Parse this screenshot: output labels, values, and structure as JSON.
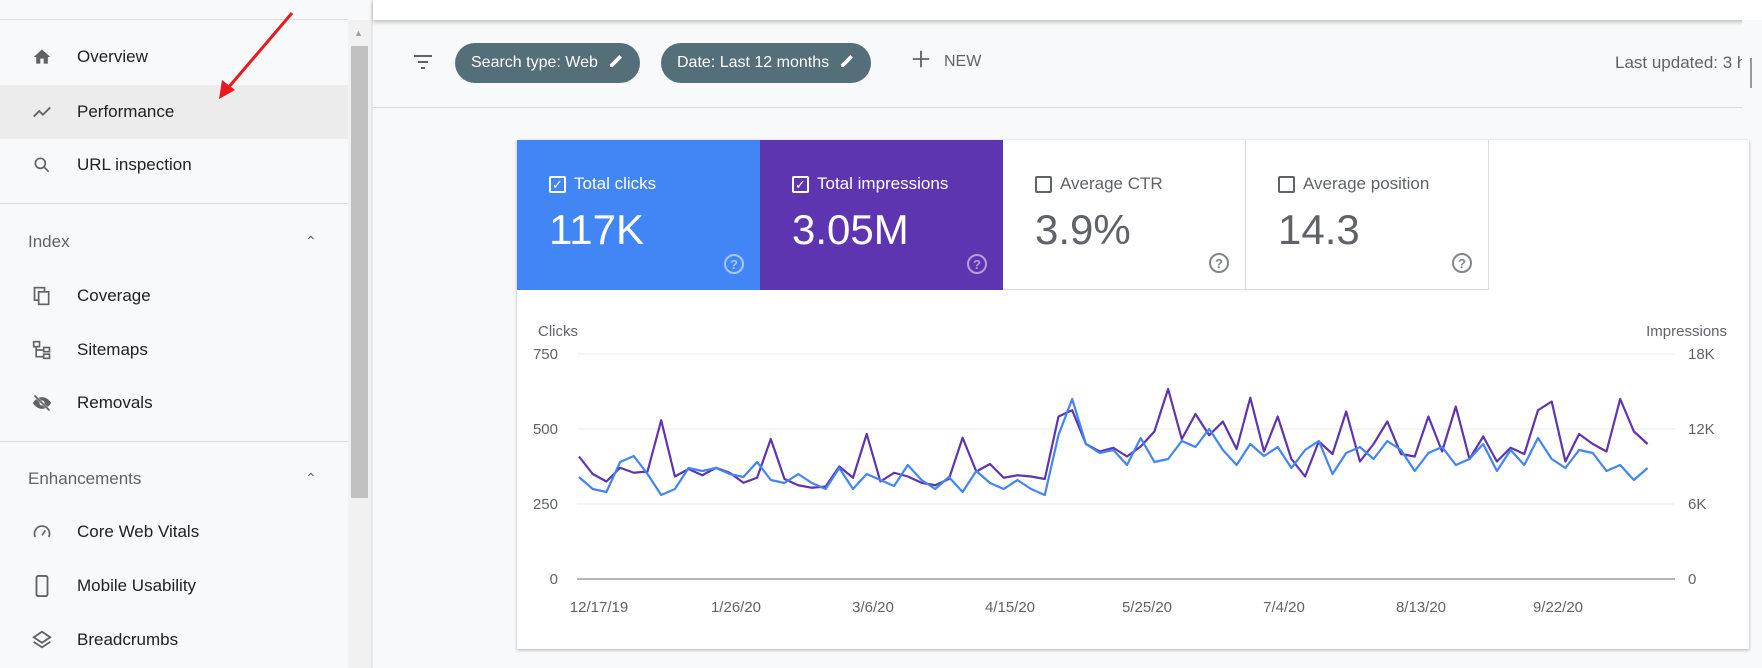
{
  "sidebar": {
    "items": [
      {
        "label": "Overview",
        "icon": "home-icon"
      },
      {
        "label": "Performance",
        "icon": "trending-up-icon",
        "active": true
      },
      {
        "label": "URL inspection",
        "icon": "search-icon"
      }
    ],
    "index": {
      "title": "Index",
      "items": [
        {
          "label": "Coverage",
          "icon": "copy-icon"
        },
        {
          "label": "Sitemaps",
          "icon": "sitemap-icon"
        },
        {
          "label": "Removals",
          "icon": "eye-off-icon"
        }
      ]
    },
    "enhancements": {
      "title": "Enhancements",
      "items": [
        {
          "label": "Core Web Vitals",
          "icon": "gauge-icon"
        },
        {
          "label": "Mobile Usability",
          "icon": "phone-icon"
        },
        {
          "label": "Breadcrumbs",
          "icon": "layers-icon"
        }
      ]
    }
  },
  "toolbar": {
    "chip1": "Search type: Web",
    "chip2": "Date: Last 12 months",
    "new_label": "NEW",
    "last_updated": "Last updated: 3 h"
  },
  "metrics": [
    {
      "label": "Total clicks",
      "value": "117K",
      "checked": true,
      "color": "#4285f4"
    },
    {
      "label": "Total impressions",
      "value": "3.05M",
      "checked": true,
      "color": "#5e35b1"
    },
    {
      "label": "Average CTR",
      "value": "3.9%",
      "checked": false
    },
    {
      "label": "Average position",
      "value": "14.3",
      "checked": false
    }
  ],
  "chart_data": {
    "type": "line",
    "ylabel_left": "Clicks",
    "ylabel_right": "Impressions",
    "yticks_left": [
      "0",
      "250",
      "500",
      "750"
    ],
    "ylim_left": [
      0,
      750
    ],
    "yticks_right": [
      "0",
      "6K",
      "12K",
      "18K"
    ],
    "ylim_right": [
      0,
      18000
    ],
    "xticks": [
      "12/17/19",
      "1/26/20",
      "3/6/20",
      "4/15/20",
      "5/25/20",
      "7/4/20",
      "8/13/20",
      "9/22/20"
    ],
    "x_step_days": 4,
    "series": [
      {
        "name": "Clicks",
        "axis": "left",
        "color": "#4285f4",
        "values": [
          340,
          300,
          290,
          390,
          410,
          350,
          280,
          300,
          370,
          360,
          370,
          350,
          340,
          390,
          330,
          320,
          350,
          320,
          300,
          370,
          300,
          350,
          330,
          310,
          380,
          330,
          300,
          340,
          290,
          360,
          320,
          300,
          330,
          300,
          280,
          480,
          600,
          450,
          420,
          430,
          380,
          470,
          390,
          400,
          460,
          440,
          500,
          430,
          380,
          450,
          410,
          440,
          370,
          430,
          460,
          350,
          420,
          440,
          400,
          460,
          430,
          360,
          420,
          440,
          380,
          400,
          450,
          360,
          430,
          380,
          470,
          400,
          370,
          430,
          420,
          360,
          380,
          330,
          370
        ]
      },
      {
        "name": "Impressions",
        "axis": "right",
        "color": "#5e35b1",
        "values": [
          9800,
          8400,
          7800,
          8900,
          8500,
          8600,
          12700,
          8200,
          8800,
          8300,
          8900,
          8500,
          7700,
          8100,
          11200,
          8000,
          7500,
          7300,
          7400,
          9000,
          8100,
          11600,
          7800,
          8500,
          8200,
          7700,
          7500,
          8000,
          11300,
          8600,
          9200,
          8100,
          8300,
          8200,
          8000,
          13000,
          13500,
          10800,
          10200,
          10500,
          9800,
          10600,
          11800,
          15200,
          11200,
          13200,
          11500,
          12600,
          10400,
          14500,
          10200,
          13000,
          9600,
          8200,
          11000,
          10000,
          13400,
          9400,
          10800,
          12600,
          10000,
          9800,
          13000,
          10200,
          13800,
          9600,
          11400,
          9400,
          10500,
          10000,
          13500,
          14200,
          9400,
          11600,
          10800,
          10200,
          14400,
          11800,
          10800
        ]
      }
    ]
  }
}
